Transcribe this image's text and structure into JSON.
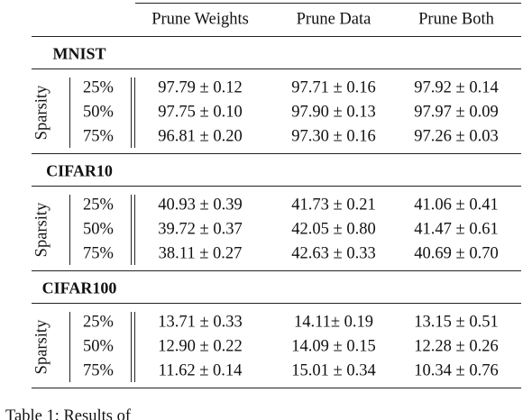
{
  "table": {
    "columns": [
      "Prune Weights",
      "Prune Data",
      "Prune Both"
    ],
    "sections": [
      {
        "name": "MNIST",
        "row_group": "Sparsity",
        "rows": [
          {
            "label": "25%",
            "cells": [
              "97.79 ± 0.12",
              "97.71 ± 0.16",
              "97.92 ± 0.14"
            ]
          },
          {
            "label": "50%",
            "cells": [
              "97.75 ± 0.10",
              "97.90 ± 0.13",
              "97.97 ± 0.09"
            ]
          },
          {
            "label": "75%",
            "cells": [
              "96.81 ± 0.20",
              "97.30 ± 0.16",
              "97.26 ± 0.03"
            ]
          }
        ]
      },
      {
        "name": "CIFAR10",
        "row_group": "Sparsity",
        "rows": [
          {
            "label": "25%",
            "cells": [
              "40.93 ± 0.39",
              "41.73 ± 0.21",
              "41.06 ± 0.41"
            ]
          },
          {
            "label": "50%",
            "cells": [
              "39.72 ± 0.37",
              "42.05 ± 0.80",
              "41.47 ± 0.61"
            ]
          },
          {
            "label": "75%",
            "cells": [
              "38.11 ± 0.27",
              "42.63 ± 0.33",
              "40.69 ± 0.70"
            ]
          }
        ]
      },
      {
        "name": "CIFAR100",
        "row_group": "Sparsity",
        "rows": [
          {
            "label": "25%",
            "cells": [
              "13.71 ± 0.33",
              "14.11± 0.19",
              "13.15 ± 0.51"
            ]
          },
          {
            "label": "50%",
            "cells": [
              "12.90 ± 0.22",
              "14.09 ± 0.15",
              "12.28 ± 0.26"
            ]
          },
          {
            "label": "75%",
            "cells": [
              "11.62 ± 0.14",
              "15.01 ± 0.34",
              "10.34 ± 0.76"
            ]
          }
        ]
      }
    ]
  },
  "caption": "Table 1: Results of"
}
